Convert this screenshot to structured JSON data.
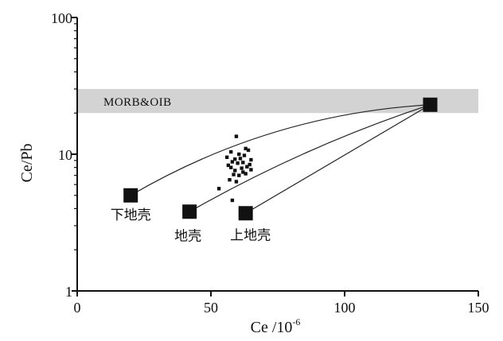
{
  "chart_data": {
    "type": "scatter",
    "xlabel": "Ce /10",
    "xlabel_sup": "-6",
    "ylabel": "Ce/Pb",
    "xlim": [
      0,
      150
    ],
    "ylim": [
      1,
      100
    ],
    "yscale": "log",
    "xticks": [
      0,
      50,
      100,
      150
    ],
    "yticks": [
      1,
      10,
      100
    ],
    "grid": false,
    "band": {
      "label": "MORB&OIB",
      "y_range": [
        20,
        30
      ],
      "color": "#d3d3d3"
    },
    "reservoirs": [
      {
        "label": "下地壳",
        "x": 20,
        "y": 5.0
      },
      {
        "label": "地壳",
        "x": 42,
        "y": 3.8
      },
      {
        "label": "上地壳",
        "x": 63,
        "y": 3.7
      },
      {
        "label": "",
        "x": 132,
        "y": 23
      }
    ],
    "mixing_curves": [
      {
        "from": 0,
        "to": 3,
        "bend": 0.12
      },
      {
        "from": 1,
        "to": 3,
        "bend": 0.05
      },
      {
        "from": 2,
        "to": 3,
        "bend": 0.0
      }
    ],
    "samples": [
      {
        "x": 59.5,
        "y": 13.5
      },
      {
        "x": 57.5,
        "y": 10.4
      },
      {
        "x": 63.0,
        "y": 11.0
      },
      {
        "x": 64.0,
        "y": 10.7
      },
      {
        "x": 60.5,
        "y": 10.0
      },
      {
        "x": 62.5,
        "y": 9.8
      },
      {
        "x": 56.0,
        "y": 9.5
      },
      {
        "x": 59.0,
        "y": 9.2
      },
      {
        "x": 61.0,
        "y": 9.3
      },
      {
        "x": 65.0,
        "y": 9.1
      },
      {
        "x": 58.0,
        "y": 8.8
      },
      {
        "x": 60.0,
        "y": 8.6
      },
      {
        "x": 62.0,
        "y": 8.7
      },
      {
        "x": 56.5,
        "y": 8.3
      },
      {
        "x": 64.5,
        "y": 8.4
      },
      {
        "x": 57.5,
        "y": 8.0
      },
      {
        "x": 61.5,
        "y": 7.9
      },
      {
        "x": 63.5,
        "y": 8.1
      },
      {
        "x": 59.0,
        "y": 7.6
      },
      {
        "x": 62.0,
        "y": 7.4
      },
      {
        "x": 65.0,
        "y": 7.7
      },
      {
        "x": 58.5,
        "y": 7.1
      },
      {
        "x": 60.5,
        "y": 7.0
      },
      {
        "x": 63.0,
        "y": 7.2
      },
      {
        "x": 57.0,
        "y": 6.5
      },
      {
        "x": 59.5,
        "y": 6.3
      },
      {
        "x": 53.0,
        "y": 5.6
      },
      {
        "x": 58.0,
        "y": 4.6
      },
      {
        "x": 64.0,
        "y": 3.5
      }
    ]
  }
}
